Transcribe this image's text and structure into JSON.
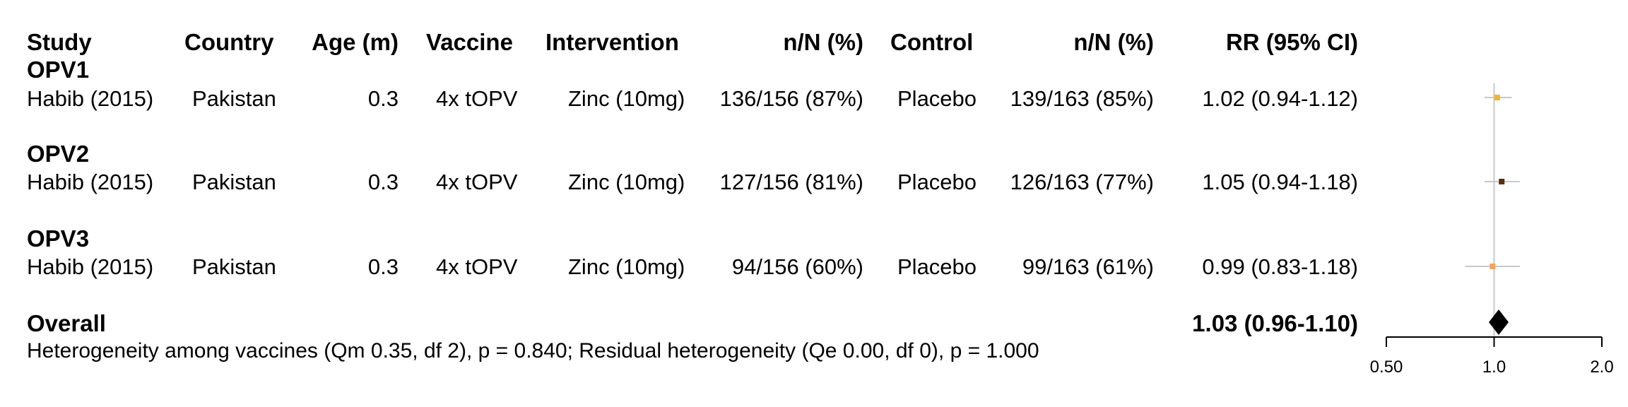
{
  "table": {
    "headers": {
      "study": "Study",
      "country": "Country",
      "age": "Age (m)",
      "vaccine": "Vaccine",
      "intervention": "Intervention",
      "int_nn": "n/N (%)",
      "control": "Control",
      "ctl_nn": "n/N (%)",
      "rr": "RR (95% CI)"
    },
    "groups": [
      {
        "label": "OPV1",
        "rows": [
          {
            "study": "Habib (2015)",
            "country": "Pakistan",
            "age": "0.3",
            "vaccine": "4x tOPV",
            "intervention": "Zinc (10mg)",
            "int_nn": "136/156 (87%)",
            "control": "Placebo",
            "ctl_nn": "139/163 (85%)",
            "rr": "1.02 (0.94-1.12)"
          }
        ]
      },
      {
        "label": "OPV2",
        "rows": [
          {
            "study": "Habib (2015)",
            "country": "Pakistan",
            "age": "0.3",
            "vaccine": "4x tOPV",
            "intervention": "Zinc (10mg)",
            "int_nn": "127/156 (81%)",
            "control": "Placebo",
            "ctl_nn": "126/163 (77%)",
            "rr": "1.05 (0.94-1.18)"
          }
        ]
      },
      {
        "label": "OPV3",
        "rows": [
          {
            "study": "Habib (2015)",
            "country": "Pakistan",
            "age": "0.3",
            "vaccine": "4x tOPV",
            "intervention": "Zinc (10mg)",
            "int_nn": "94/156 (60%)",
            "control": "Placebo",
            "ctl_nn": "99/163 (61%)",
            "rr": "0.99 (0.83-1.18)"
          }
        ]
      }
    ],
    "overall": {
      "label": "Overall",
      "rr": "1.03 (0.96-1.10)"
    },
    "heterogeneity": "Heterogeneity among vaccines (Qm 0.35, df 2), p = 0.840; Residual heterogeneity (Qe 0.00, df 0), p = 1.000"
  },
  "chart_data": {
    "type": "forest",
    "scale": "log",
    "xlim": [
      0.5,
      2.0
    ],
    "xticks": [
      0.5,
      1.0,
      2.0
    ],
    "xtick_labels": [
      "0.50",
      "1.0",
      "2.0"
    ],
    "reference_line": 1.0,
    "estimates": [
      {
        "group": "OPV1",
        "rr": 1.02,
        "lower": 0.94,
        "upper": 1.12,
        "color": "#f0b429"
      },
      {
        "group": "OPV2",
        "rr": 1.05,
        "lower": 0.94,
        "upper": 1.18,
        "color": "#5a2d0c"
      },
      {
        "group": "OPV3",
        "rr": 0.99,
        "lower": 0.83,
        "upper": 1.18,
        "color": "#f4a460"
      }
    ],
    "overall": {
      "rr": 1.03,
      "lower": 0.96,
      "upper": 1.1,
      "color": "#000000"
    },
    "reference_color": "#c8c8c8",
    "ci_color": "#c8c8c8"
  }
}
